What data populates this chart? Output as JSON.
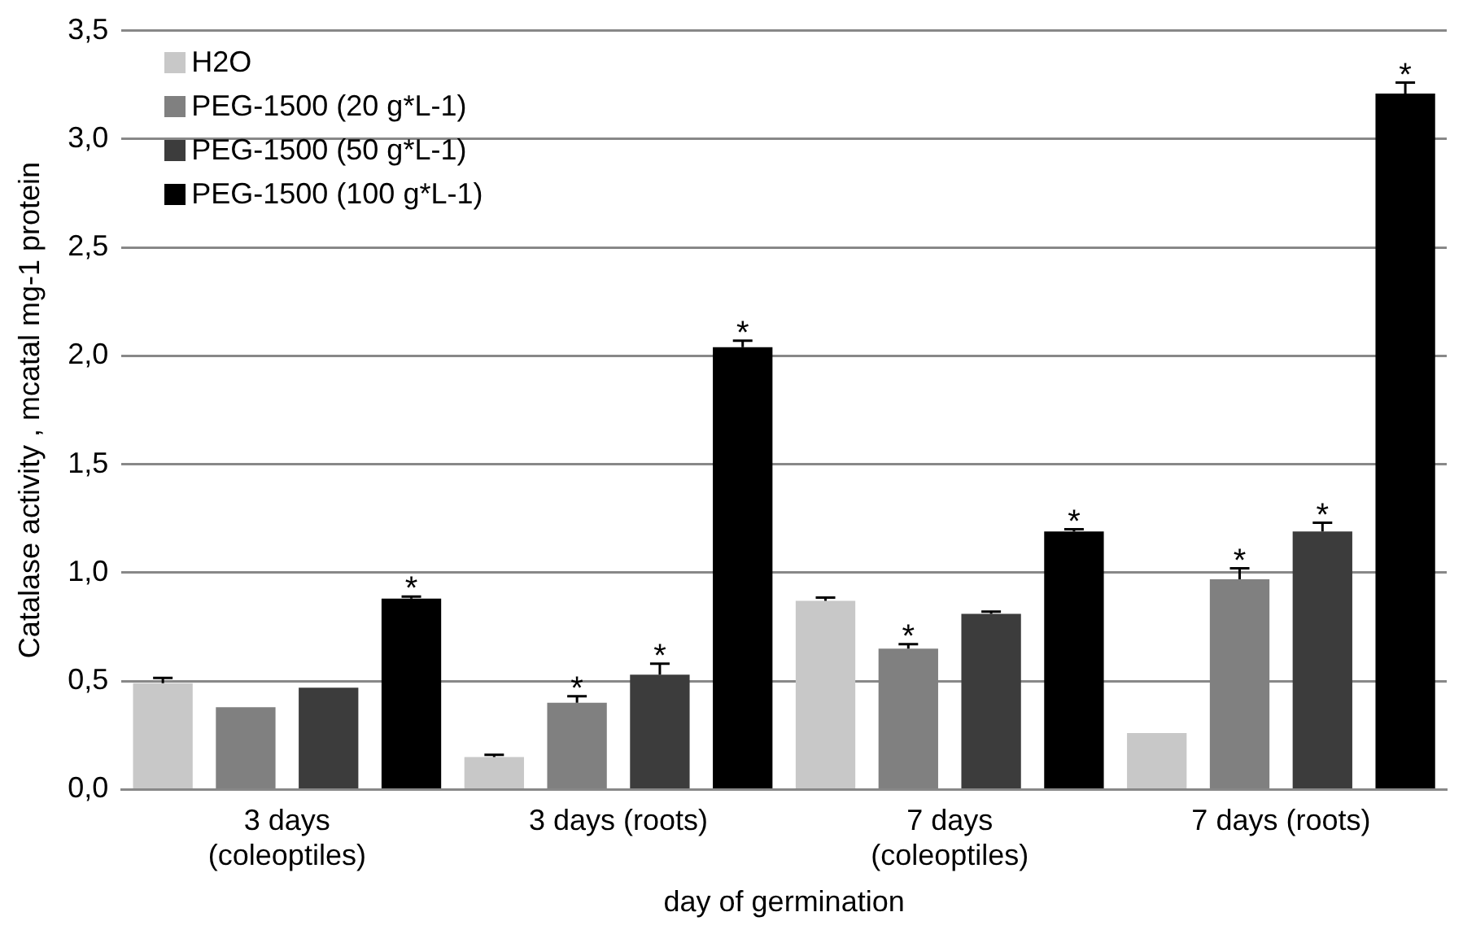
{
  "chart_data": {
    "type": "bar",
    "xlabel": "day of germination",
    "ylabel": "Catalase activity , mcatal mg-1 protein",
    "categories": [
      "3 days (coleoptiles)",
      "3 days (roots)",
      "7 days (coleoptiles)",
      "7 days (roots)"
    ],
    "series": [
      {
        "name": "H2O",
        "color": "#c8c8c8",
        "values": [
          0.49,
          0.15,
          0.87,
          0.26
        ],
        "errors": [
          0.025,
          0.01,
          0.015,
          null
        ]
      },
      {
        "name": "PEG-1500 (20 g*L-1)",
        "color": "#808080",
        "values": [
          0.38,
          0.4,
          0.65,
          0.97
        ],
        "errors": [
          null,
          0.03,
          0.02,
          0.05
        ],
        "value_labels": [
          null,
          "*",
          "*",
          "*"
        ]
      },
      {
        "name": "PEG-1500 (50 g*L-1)",
        "color": "#3c3c3c",
        "values": [
          0.47,
          0.53,
          0.81,
          1.19
        ],
        "errors": [
          null,
          0.05,
          0.01,
          0.04
        ],
        "value_labels": [
          null,
          "*",
          null,
          "*"
        ]
      },
      {
        "name": "PEG-1500 (100 g*L-1)",
        "color": "#000000",
        "values": [
          0.88,
          2.04,
          1.19,
          3.21
        ],
        "errors": [
          0.01,
          0.03,
          0.01,
          0.05
        ],
        "value_labels": [
          "*",
          "*",
          "*",
          "*"
        ]
      }
    ],
    "ylim": [
      0,
      3.5
    ],
    "yticks": [
      {
        "value": 0,
        "label": "0,0"
      },
      {
        "value": 0.5,
        "label": "0,5"
      },
      {
        "value": 1,
        "label": "1,0"
      },
      {
        "value": 1.5,
        "label": "1,5"
      },
      {
        "value": 2,
        "label": "2,0"
      },
      {
        "value": 2.5,
        "label": "2,5"
      },
      {
        "value": 3,
        "label": "3,0"
      },
      {
        "value": 3.5,
        "label": "3,5"
      }
    ],
    "grid": "y",
    "legend": "top left"
  }
}
